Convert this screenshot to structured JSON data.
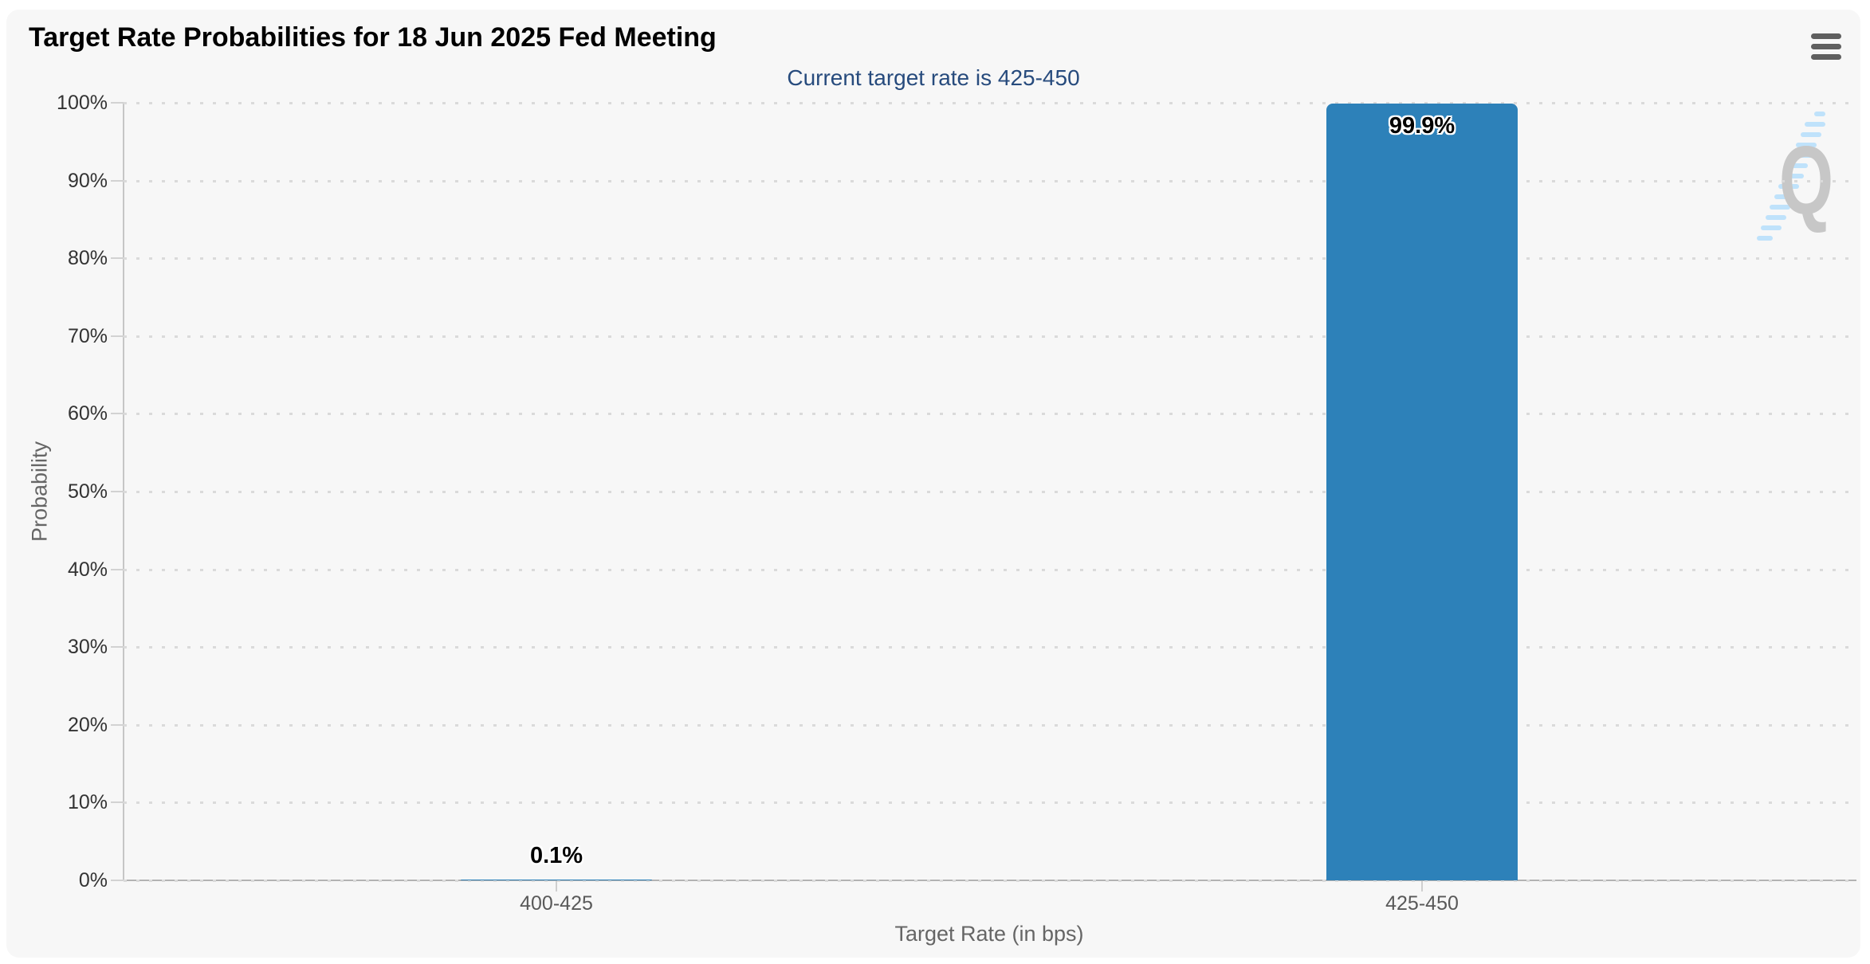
{
  "chart": {
    "title": "Target Rate Probabilities for 18 Jun 2025 Fed Meeting",
    "subtitle": "Current target rate is 425-450",
    "watermark": "Q",
    "colors": {
      "bar": "#2d81b9",
      "subtitle": "#274b7d",
      "panel_bg": "#f7f7f7",
      "title": "#000000",
      "axis_label": "#333333",
      "category_label": "#595959",
      "axis_title": "#666666"
    }
  },
  "chart_data": {
    "type": "bar",
    "title": "Target Rate Probabilities for 18 Jun 2025 Fed Meeting",
    "subtitle": "Current target rate is 425-450",
    "categories": [
      "400-425",
      "425-450"
    ],
    "values": [
      0.1,
      99.9
    ],
    "data_labels": [
      "0.1%",
      "99.9%"
    ],
    "xlabel": "Target Rate (in bps)",
    "ylabel": "Probability",
    "ylim": [
      0,
      100
    ],
    "yticks": [
      "0%",
      "10%",
      "20%",
      "30%",
      "40%",
      "50%",
      "60%",
      "70%",
      "80%",
      "90%",
      "100%"
    ],
    "grid": "horizontal-dotted",
    "legend": "none"
  }
}
